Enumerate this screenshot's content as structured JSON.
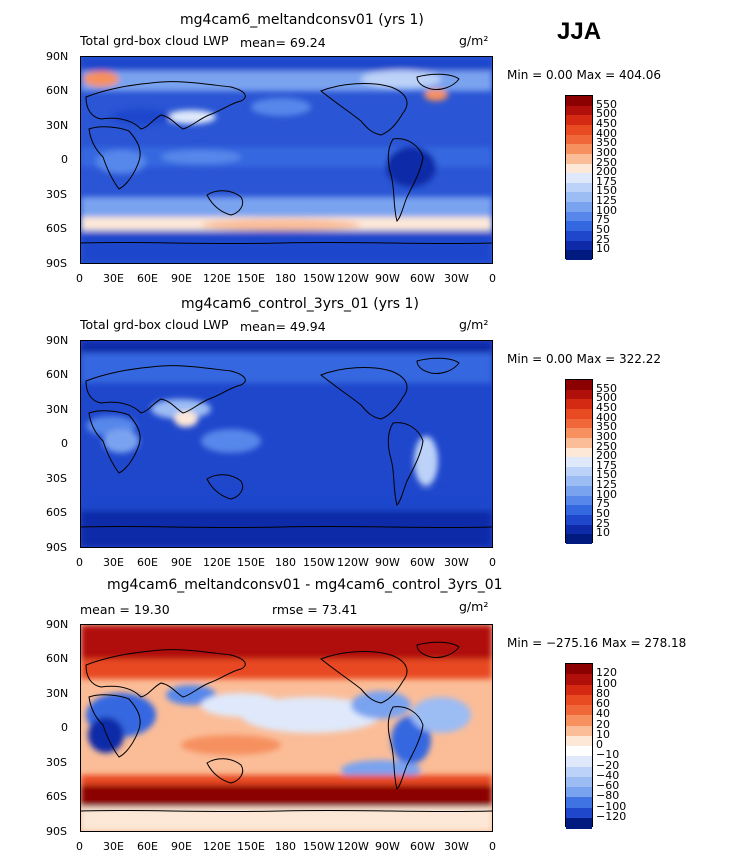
{
  "season": "JJA",
  "units": "g/m²",
  "lat_labels": [
    "90N",
    "60N",
    "30N",
    "0",
    "30S",
    "60S",
    "90S"
  ],
  "lon_labels": [
    "0",
    "30E",
    "60E",
    "90E",
    "120E",
    "150E",
    "180",
    "150W",
    "120W",
    "90W",
    "60W",
    "30W",
    "0"
  ],
  "panels": [
    {
      "title": "mg4cam6_meltandconsv01 (yrs 1)",
      "left_text": "Total grd-box cloud LWP",
      "stat_text": "mean=   69.24",
      "range_text": "Min =    0.00 Max = 404.06",
      "colorbar_labels": [
        "550",
        "500",
        "450",
        "400",
        "350",
        "300",
        "250",
        "200",
        "175",
        "150",
        "125",
        "100",
        "75",
        "50",
        "25",
        "10"
      ],
      "colorbar_colors": [
        "#8b0000",
        "#b00f0a",
        "#d42a14",
        "#e84a22",
        "#f0683a",
        "#f6905e",
        "#fbbd98",
        "#fde8d8",
        "#dfe9fb",
        "#bcd2f8",
        "#9cbcf4",
        "#7aa3ef",
        "#5787ea",
        "#3468e0",
        "#1f47cc",
        "#0e2aa8",
        "#001a80"
      ]
    },
    {
      "title": "mg4cam6_control_3yrs_01 (yrs 1)",
      "left_text": "Total grd-box cloud LWP",
      "stat_text": "mean=   49.94",
      "range_text": "Min =    0.00 Max = 322.22",
      "colorbar_labels": [
        "550",
        "500",
        "450",
        "400",
        "350",
        "300",
        "250",
        "200",
        "175",
        "150",
        "125",
        "100",
        "75",
        "50",
        "25",
        "10"
      ],
      "colorbar_colors": [
        "#8b0000",
        "#b00f0a",
        "#d42a14",
        "#e84a22",
        "#f0683a",
        "#f6905e",
        "#fbbd98",
        "#fde8d8",
        "#dfe9fb",
        "#bcd2f8",
        "#9cbcf4",
        "#7aa3ef",
        "#5787ea",
        "#3468e0",
        "#1f47cc",
        "#0e2aa8",
        "#001a80"
      ]
    },
    {
      "title": "mg4cam6_meltandconsv01 - mg4cam6_control_3yrs_01",
      "left_text": "mean =   19.30",
      "stat_text": "rmse =   73.41",
      "range_text": "Min = −275.16 Max = 278.18",
      "colorbar_labels": [
        "120",
        "100",
        "80",
        "60",
        "40",
        "20",
        "10",
        "0",
        "−10",
        "−20",
        "−40",
        "−60",
        "−80",
        "−100",
        "−120"
      ],
      "colorbar_colors": [
        "#8b0000",
        "#b00f0a",
        "#d42a14",
        "#e84a22",
        "#f0683a",
        "#f6905e",
        "#fbbd98",
        "#fde8d8",
        "#ffffff",
        "#dfe9fb",
        "#bcd2f8",
        "#9cbcf4",
        "#7aa3ef",
        "#3f73e4",
        "#1f47cc",
        "#001a80"
      ]
    }
  ]
}
